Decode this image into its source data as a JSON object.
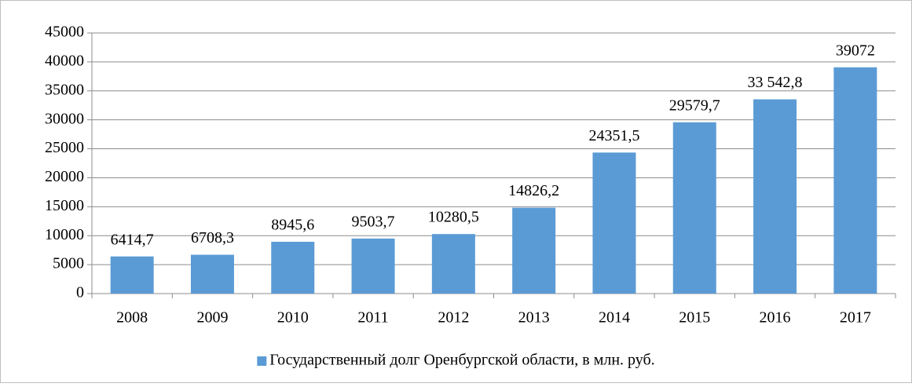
{
  "chart_data": {
    "type": "bar",
    "categories": [
      "2008",
      "2009",
      "2010",
      "2011",
      "2012",
      "2013",
      "2014",
      "2015",
      "2016",
      "2017"
    ],
    "series": [
      {
        "name": "Государственный долг Оренбургской области, в млн. руб.",
        "color": "#5b9bd5",
        "values": [
          6414.7,
          6708.3,
          8945.6,
          9503.7,
          10280.5,
          14826.2,
          24351.5,
          29579.7,
          33542.8,
          39072
        ],
        "value_labels": [
          "6414,7",
          "6708,3",
          "8945,6",
          "9503,7",
          "10280,5",
          "14826,2",
          "24351,5",
          "29579,7",
          "33 542,8",
          "39072"
        ]
      }
    ],
    "ylim": [
      0,
      45000
    ],
    "yticks": [
      0,
      5000,
      10000,
      15000,
      20000,
      25000,
      30000,
      35000,
      40000,
      45000
    ],
    "grid": true,
    "legend": "bottom"
  }
}
